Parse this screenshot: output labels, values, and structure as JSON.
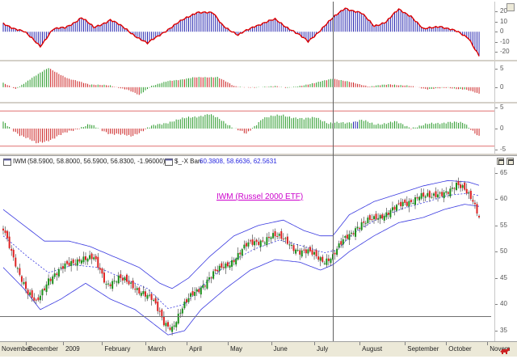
{
  "header": {
    "symbol": "IWM",
    "ohlc": "(58.5900, 58.8000, 56.5900, 56.8300, -1.96000)",
    "indicator_name": "$_-X Ban",
    "indicator_values": "60.3808, 58.6636, 62.5631"
  },
  "colors": {
    "up": "#1a8f1a",
    "down": "#dd2222",
    "band": "#3a3ae0",
    "mid": "#3a3ae0",
    "osc_up": "#2a2ab0",
    "osc_line": "#dd0000",
    "hist_green": "#2a9a2a",
    "hist_red": "#cc2222",
    "title": "#cc00cc"
  },
  "chart_data": [
    {
      "type": "bar",
      "panel": "oscillator-1",
      "ylim": [
        -28,
        30
      ],
      "ticks": [
        "20",
        "10",
        "0",
        "-10",
        "-20"
      ],
      "tick_values": [
        20,
        10,
        0,
        -10,
        -20
      ],
      "anchors": [
        [
          0,
          8
        ],
        [
          10,
          0
        ],
        [
          18,
          -14
        ],
        [
          24,
          2
        ],
        [
          30,
          4
        ],
        [
          38,
          14
        ],
        [
          44,
          4
        ],
        [
          52,
          12
        ],
        [
          60,
          2
        ],
        [
          70,
          -12
        ],
        [
          78,
          0
        ],
        [
          86,
          10
        ],
        [
          94,
          20
        ],
        [
          102,
          18
        ],
        [
          106,
          8
        ],
        [
          114,
          -4
        ],
        [
          122,
          6
        ],
        [
          132,
          12
        ],
        [
          140,
          2
        ],
        [
          148,
          -10
        ],
        [
          156,
          6
        ],
        [
          166,
          24
        ],
        [
          174,
          18
        ],
        [
          180,
          6
        ],
        [
          186,
          10
        ],
        [
          192,
          22
        ],
        [
          198,
          16
        ],
        [
          204,
          2
        ],
        [
          212,
          6
        ],
        [
          220,
          0
        ],
        [
          226,
          -6
        ],
        [
          231,
          -24
        ]
      ]
    },
    {
      "type": "bar",
      "panel": "oscillator-2",
      "ylim": [
        -4,
        7
      ],
      "ticks": [
        "5",
        "0"
      ],
      "tick_values": [
        5,
        0
      ],
      "anchors": [
        [
          0,
          1.2
        ],
        [
          6,
          -0.6
        ],
        [
          14,
          2.6
        ],
        [
          22,
          5.2
        ],
        [
          32,
          2.2
        ],
        [
          42,
          0.8
        ],
        [
          52,
          0.4
        ],
        [
          60,
          -0.6
        ],
        [
          66,
          -2.2
        ],
        [
          72,
          0.4
        ],
        [
          80,
          1.6
        ],
        [
          92,
          2.6
        ],
        [
          104,
          2.8
        ],
        [
          112,
          0.3
        ],
        [
          122,
          -0.2
        ],
        [
          132,
          0.4
        ],
        [
          138,
          -0.3
        ],
        [
          146,
          0.6
        ],
        [
          152,
          1.2
        ],
        [
          160,
          2.4
        ],
        [
          168,
          1.4
        ],
        [
          178,
          0.2
        ],
        [
          188,
          0.8
        ],
        [
          196,
          0.4
        ],
        [
          206,
          -0.5
        ],
        [
          216,
          -0.2
        ],
        [
          224,
          -0.6
        ],
        [
          231,
          -1.8
        ]
      ]
    },
    {
      "type": "bar",
      "panel": "oscillator-3",
      "ylim": [
        -6,
        6
      ],
      "ticks": [
        "5",
        "0",
        "-5"
      ],
      "tick_values": [
        5,
        0,
        -5
      ],
      "reference_lines": [
        4.2,
        -4.2
      ],
      "anchors": [
        [
          0,
          1.5
        ],
        [
          8,
          -1.5
        ],
        [
          16,
          -3.5
        ],
        [
          24,
          -2.5
        ],
        [
          32,
          -0.6
        ],
        [
          42,
          0.9
        ],
        [
          52,
          -1.2
        ],
        [
          62,
          -1.8
        ],
        [
          72,
          0.5
        ],
        [
          82,
          1.8
        ],
        [
          92,
          2.8
        ],
        [
          100,
          3.4
        ],
        [
          106,
          2.0
        ],
        [
          112,
          0.2
        ],
        [
          118,
          -1.4
        ],
        [
          126,
          2.6
        ],
        [
          136,
          3.2
        ],
        [
          146,
          2.2
        ],
        [
          152,
          2.8
        ],
        [
          158,
          1.2
        ],
        [
          166,
          1.4
        ],
        [
          174,
          2.0
        ],
        [
          180,
          1.0
        ],
        [
          190,
          1.6
        ],
        [
          198,
          0.2
        ],
        [
          206,
          1.0
        ],
        [
          216,
          1.6
        ],
        [
          224,
          1.2
        ],
        [
          231,
          -1.8
        ]
      ],
      "highlight": [
        170,
        171,
        172
      ]
    },
    {
      "type": "candlestick",
      "panel": "price",
      "title": "IWM (Russel 2000 ETF)",
      "ylim": [
        33,
        66
      ],
      "ticks": [
        "65",
        "60",
        "55",
        "50",
        "45",
        "40",
        "35"
      ],
      "tick_values": [
        65,
        60,
        55,
        50,
        45,
        40,
        35
      ],
      "months": [
        "November",
        "December",
        "2009",
        "February",
        "March",
        "April",
        "May",
        "June",
        "July",
        "August",
        "September",
        "October",
        "Novem"
      ],
      "month_index": [
        -9,
        11,
        29,
        48,
        69,
        89,
        109,
        130,
        151,
        173,
        195,
        215,
        235
      ],
      "crosshair_index": 160,
      "bar_count": 232,
      "close_anchors": [
        [
          0,
          54
        ],
        [
          6,
          48
        ],
        [
          12,
          42
        ],
        [
          16,
          40
        ],
        [
          22,
          45
        ],
        [
          30,
          47
        ],
        [
          38,
          49
        ],
        [
          44,
          48.5
        ],
        [
          50,
          44
        ],
        [
          56,
          45
        ],
        [
          62,
          43.5
        ],
        [
          68,
          42.5
        ],
        [
          72,
          41
        ],
        [
          76,
          38
        ],
        [
          78,
          36.5
        ],
        [
          82,
          35.8
        ],
        [
          86,
          38.5
        ],
        [
          92,
          42
        ],
        [
          100,
          45
        ],
        [
          110,
          48
        ],
        [
          118,
          51
        ],
        [
          124,
          52
        ],
        [
          130,
          53
        ],
        [
          138,
          52
        ],
        [
          144,
          50
        ],
        [
          150,
          49.5
        ],
        [
          156,
          48.5
        ],
        [
          160,
          49
        ],
        [
          166,
          52.5
        ],
        [
          172,
          55
        ],
        [
          180,
          56
        ],
        [
          188,
          58
        ],
        [
          196,
          59
        ],
        [
          202,
          61
        ],
        [
          208,
          60
        ],
        [
          214,
          61.5
        ],
        [
          220,
          62.5
        ],
        [
          224,
          61.5
        ],
        [
          228,
          60
        ],
        [
          231,
          57
        ]
      ],
      "upper_band": [
        [
          0,
          58
        ],
        [
          10,
          55
        ],
        [
          20,
          52
        ],
        [
          32,
          52
        ],
        [
          42,
          51
        ],
        [
          54,
          49
        ],
        [
          66,
          47
        ],
        [
          76,
          44
        ],
        [
          82,
          43
        ],
        [
          90,
          45
        ],
        [
          100,
          49
        ],
        [
          112,
          53
        ],
        [
          124,
          55
        ],
        [
          136,
          56
        ],
        [
          146,
          54
        ],
        [
          154,
          53
        ],
        [
          160,
          53
        ],
        [
          168,
          57
        ],
        [
          180,
          59.5
        ],
        [
          192,
          61
        ],
        [
          204,
          62.5
        ],
        [
          216,
          63.5
        ],
        [
          226,
          63.2
        ],
        [
          231,
          62.6
        ]
      ],
      "lower_band": [
        [
          0,
          47
        ],
        [
          10,
          43
        ],
        [
          18,
          39
        ],
        [
          28,
          41
        ],
        [
          40,
          44
        ],
        [
          52,
          41
        ],
        [
          64,
          39
        ],
        [
          74,
          36
        ],
        [
          80,
          34.2
        ],
        [
          88,
          35
        ],
        [
          96,
          39
        ],
        [
          108,
          43
        ],
        [
          120,
          46.5
        ],
        [
          132,
          48.5
        ],
        [
          144,
          48
        ],
        [
          154,
          46.5
        ],
        [
          160,
          47.5
        ],
        [
          168,
          50
        ],
        [
          180,
          53
        ],
        [
          192,
          55.5
        ],
        [
          204,
          56.5
        ],
        [
          214,
          58
        ],
        [
          224,
          59
        ],
        [
          231,
          58.6
        ]
      ],
      "middle_band": [
        [
          0,
          53
        ],
        [
          12,
          49
        ],
        [
          22,
          46
        ],
        [
          34,
          47.5
        ],
        [
          46,
          47
        ],
        [
          58,
          45
        ],
        [
          70,
          43
        ],
        [
          80,
          39.2
        ],
        [
          88,
          40
        ],
        [
          98,
          44
        ],
        [
          110,
          48
        ],
        [
          122,
          50.5
        ],
        [
          134,
          52.2
        ],
        [
          146,
          51
        ],
        [
          156,
          49.8
        ],
        [
          162,
          50.3
        ],
        [
          170,
          53.5
        ],
        [
          182,
          56.3
        ],
        [
          194,
          58.2
        ],
        [
          206,
          59.5
        ],
        [
          216,
          60.7
        ],
        [
          226,
          61.1
        ],
        [
          231,
          60.6
        ]
      ]
    }
  ]
}
